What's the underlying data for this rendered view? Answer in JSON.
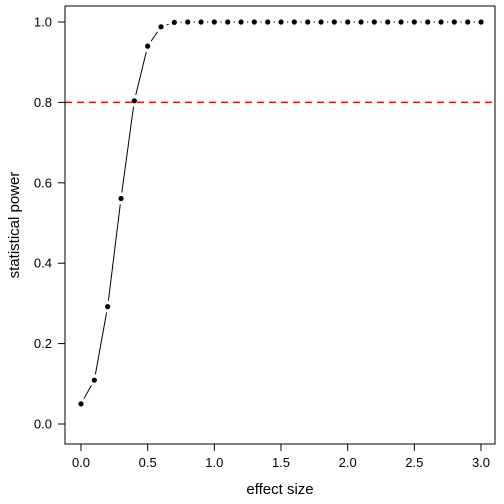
{
  "chart_data": {
    "type": "line",
    "title": "",
    "xlabel": "effect size",
    "ylabel": "statistical power",
    "xlim": [
      0,
      3
    ],
    "ylim": [
      0,
      1
    ],
    "x_ticks": [
      "0.0",
      "0.5",
      "1.0",
      "1.5",
      "2.0",
      "2.5",
      "3.0"
    ],
    "y_ticks": [
      "0.0",
      "0.2",
      "0.4",
      "0.6",
      "0.8",
      "1.0"
    ],
    "grid": false,
    "legend": "none",
    "reference_line": {
      "y": 0.8,
      "style": "dashed",
      "color": "#ff0000"
    },
    "series": [
      {
        "style": "line-and-points",
        "color": "#000000",
        "x": [
          0.0,
          0.1,
          0.2,
          0.3,
          0.4,
          0.5,
          0.6,
          0.7,
          0.8,
          0.9,
          1.0,
          1.1,
          1.2,
          1.3,
          1.4,
          1.5,
          1.6,
          1.7,
          1.8,
          1.9,
          2.0,
          2.1,
          2.2,
          2.3,
          2.4,
          2.5,
          2.6,
          2.7,
          2.8,
          2.9,
          3.0
        ],
        "y": [
          0.05,
          0.109,
          0.292,
          0.561,
          0.804,
          0.94,
          0.988,
          0.999,
          1.0,
          1.0,
          1.0,
          1.0,
          1.0,
          1.0,
          1.0,
          1.0,
          1.0,
          1.0,
          1.0,
          1.0,
          1.0,
          1.0,
          1.0,
          1.0,
          1.0,
          1.0,
          1.0,
          1.0,
          1.0,
          1.0,
          1.0
        ]
      }
    ]
  }
}
